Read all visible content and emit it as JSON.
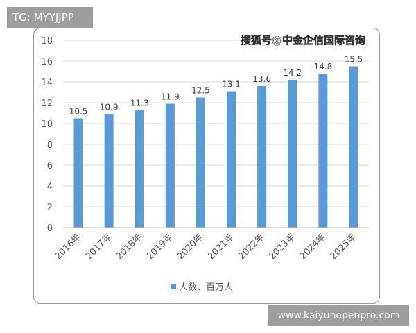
{
  "overlays": {
    "tag": "TG: MYYJJPP",
    "site": "www.kaiyunopenpro.com",
    "watermark": "搜狐号@中金企信国际咨询"
  },
  "colors": {
    "bar": "#5b9bd5",
    "grid": "#d9d9d9",
    "axis": "#bfbfbf"
  },
  "chart_data": {
    "type": "bar",
    "categories": [
      "2016年",
      "2017年",
      "2018年",
      "2019年",
      "2020年",
      "2021年",
      "2022年",
      "2023年",
      "2024年",
      "2025年"
    ],
    "series": [
      {
        "name": "人数、百万人",
        "values": [
          10.5,
          10.9,
          11.3,
          11.9,
          12.5,
          13.1,
          13.6,
          14.2,
          14.8,
          15.5
        ]
      }
    ],
    "value_labels": [
      "10.5",
      "10.9",
      "11.3",
      "11.9",
      "12.5",
      "13.1",
      "13.6",
      "14.2",
      "14.8",
      "15.5"
    ],
    "yticks": [
      "0",
      "2",
      "4",
      "6",
      "8",
      "10",
      "12",
      "14",
      "16",
      "18"
    ],
    "ylim": [
      0,
      18
    ],
    "grid": true,
    "legend_position": "bottom-center"
  }
}
